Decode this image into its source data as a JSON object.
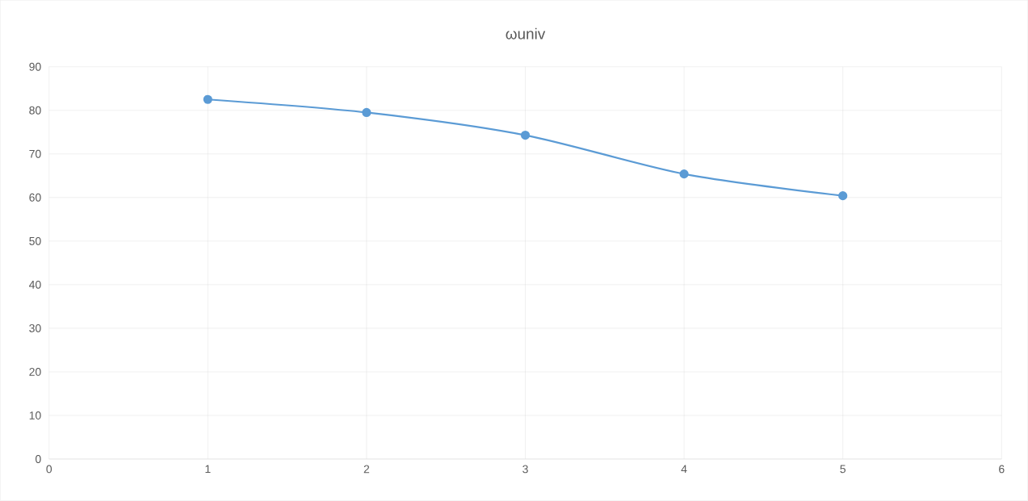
{
  "chart_data": {
    "type": "line",
    "title": "ωuniv",
    "x": [
      1,
      2,
      3,
      4,
      5
    ],
    "series": [
      {
        "color": "#5b9bd5",
        "values": [
          82.5,
          79.5,
          74.3,
          65.4,
          60.4
        ]
      }
    ],
    "xlim": [
      0,
      6
    ],
    "xticks": [
      0,
      1,
      2,
      3,
      4,
      5,
      6
    ],
    "ylim": [
      0,
      90
    ],
    "yticks": [
      0,
      10,
      20,
      30,
      40,
      50,
      60,
      70,
      80,
      90
    ],
    "grid": true,
    "marker": "circle"
  }
}
